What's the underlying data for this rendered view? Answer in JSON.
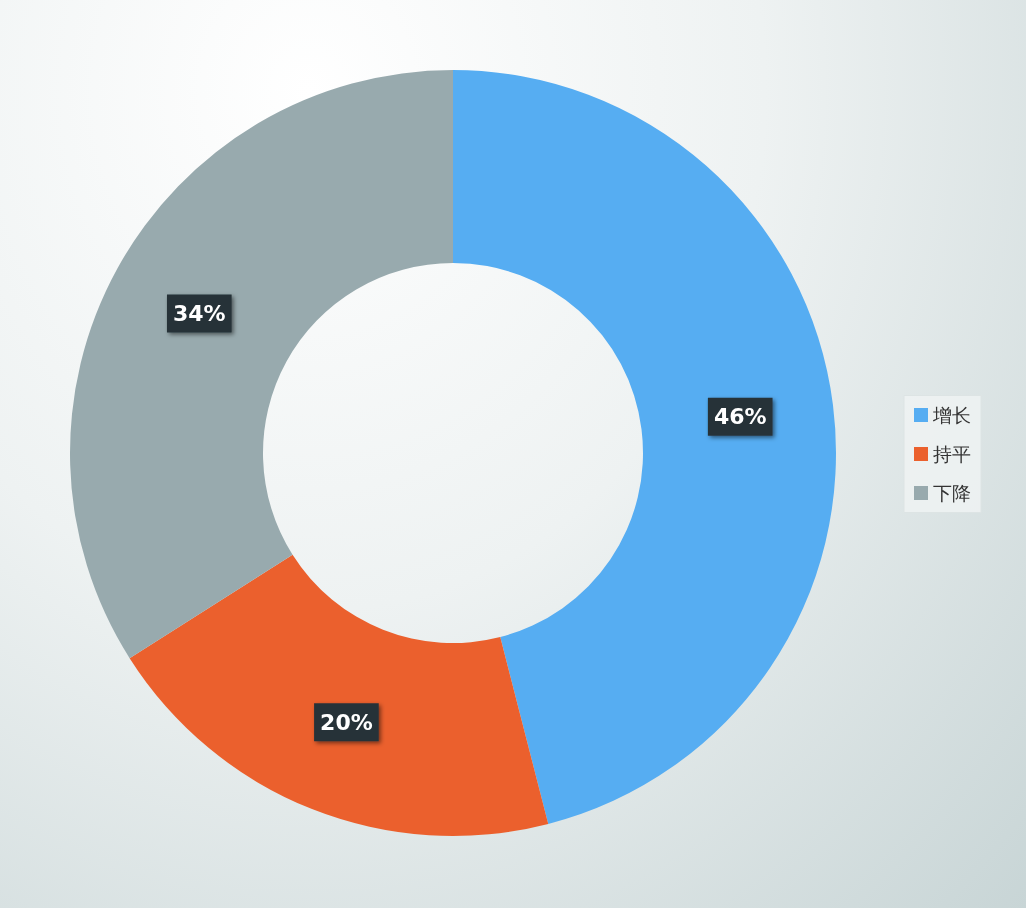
{
  "chart_data": {
    "type": "donut",
    "categories": [
      "增长",
      "持平",
      "下降"
    ],
    "values": [
      46,
      20,
      34
    ],
    "colors": [
      "#56adf2",
      "#eb602d",
      "#98aaae"
    ],
    "value_labels": [
      "46%",
      "20%",
      "34%"
    ],
    "legend": "right"
  }
}
